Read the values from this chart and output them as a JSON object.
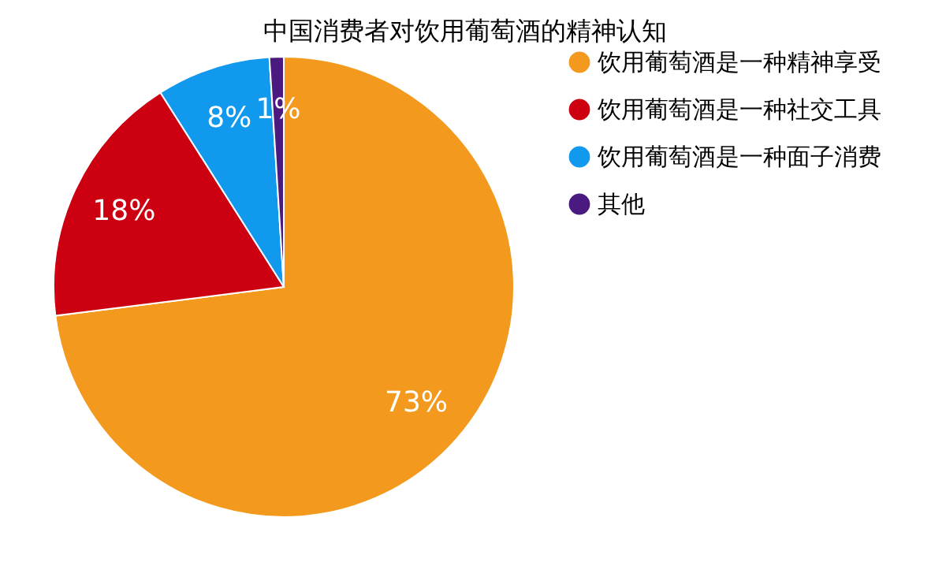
{
  "chart_data": {
    "type": "pie",
    "title": "中国消费者对饮用葡萄酒的精神认知",
    "categories": [
      "饮用葡萄酒是一种精神享受",
      "饮用葡萄酒是一种社交工具",
      "饮用葡萄酒是一种面子消费",
      "其他"
    ],
    "values": [
      73,
      18,
      8,
      1
    ],
    "colors": [
      "#f39a1e",
      "#cc0010",
      "#1199ee",
      "#4a1a80"
    ],
    "value_labels": [
      "73%",
      "18%",
      "8%",
      "1%"
    ],
    "legend": "right"
  }
}
